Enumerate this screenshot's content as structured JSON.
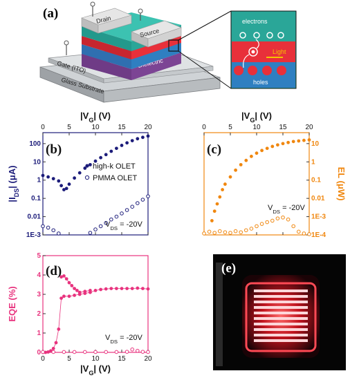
{
  "panel_a": {
    "letter": "(a)",
    "labels": {
      "drain": "Drain",
      "source": "Source",
      "dielectric": "Dielectric",
      "gate": "Gate (ITO)",
      "glass": "Glass Substrate"
    },
    "inset": {
      "electrons": "electrons",
      "light": "Light",
      "holes": "holes"
    },
    "colors": {
      "teal": "#2aa698",
      "red": "#e8303a",
      "blue": "#2f7fc1",
      "purple": "#8a4fa0",
      "gray": "#b9bcbf"
    }
  },
  "panel_e": {
    "letter": "(e)"
  },
  "chart_data": [
    {
      "panel": "(b)",
      "type": "scatter",
      "xlabel": "|V_G| (V)",
      "ylabel": "|I_DS| (μA)",
      "x_ticks": [
        "0",
        "5",
        "10",
        "15",
        "20"
      ],
      "y_ticks": [
        "1E-3",
        "0.01",
        "0.1",
        "1",
        "10",
        "100"
      ],
      "xlim": [
        0,
        20
      ],
      "ylim_log10": [
        -3,
        2.6
      ],
      "y_scale": "log",
      "annotation": "V_DS = -20V",
      "color": "#1c1c7a",
      "series": [
        {
          "name": "high-k OLET",
          "marker": "filled",
          "points": [
            [
              0,
              1.8
            ],
            [
              1,
              1.5
            ],
            [
              2,
              1.2
            ],
            [
              3,
              0.9
            ],
            [
              3.5,
              0.5
            ],
            [
              4,
              0.3
            ],
            [
              4.5,
              0.35
            ],
            [
              5,
              0.6
            ],
            [
              6,
              1.3
            ],
            [
              7,
              2.5
            ],
            [
              8,
              4.5
            ],
            [
              9,
              7
            ],
            [
              10,
              11
            ],
            [
              11,
              17
            ],
            [
              12,
              25
            ],
            [
              13,
              38
            ],
            [
              14,
              55
            ],
            [
              15,
              80
            ],
            [
              16,
              110
            ],
            [
              17,
              145
            ],
            [
              18,
              185
            ],
            [
              19,
              220
            ],
            [
              20,
              260
            ]
          ]
        },
        {
          "name": "PMMA OLET",
          "marker": "open",
          "points": [
            [
              0,
              0.003
            ],
            [
              1,
              0.0025
            ],
            [
              2,
              0.0018
            ],
            [
              3,
              0.0012
            ],
            [
              4,
              0.0008
            ],
            [
              5,
              0.0005
            ],
            [
              6,
              0.0004
            ],
            [
              7,
              0.0005
            ],
            [
              8,
              0.0008
            ],
            [
              9,
              0.0013
            ],
            [
              10,
              0.002
            ],
            [
              11,
              0.003
            ],
            [
              12,
              0.0045
            ],
            [
              13,
              0.007
            ],
            [
              14,
              0.01
            ],
            [
              15,
              0.015
            ],
            [
              16,
              0.023
            ],
            [
              17,
              0.035
            ],
            [
              18,
              0.055
            ],
            [
              19,
              0.085
            ],
            [
              20,
              0.13
            ]
          ]
        }
      ]
    },
    {
      "panel": "(c)",
      "type": "scatter",
      "xlabel": "|V_G| (V)",
      "ylabel": "EL (μW)",
      "x_ticks": [
        "0",
        "5",
        "10",
        "15",
        "20"
      ],
      "y_ticks": [
        "1E-4",
        "1E-3",
        "0.01",
        "0.1",
        "1",
        "10"
      ],
      "xlim": [
        0,
        20
      ],
      "ylim_log10": [
        -4,
        1.6
      ],
      "y_scale": "log",
      "annotation": "V_DS = -20V",
      "color": "#f0870f",
      "series": [
        {
          "marker": "filled",
          "points": [
            [
              1,
              0.00015
            ],
            [
              1.5,
              0.0006
            ],
            [
              2,
              0.002
            ],
            [
              2.5,
              0.005
            ],
            [
              3,
              0.012
            ],
            [
              3.5,
              0.03
            ],
            [
              4,
              0.06
            ],
            [
              5,
              0.15
            ],
            [
              6,
              0.35
            ],
            [
              7,
              0.7
            ],
            [
              8,
              1.2
            ],
            [
              9,
              2
            ],
            [
              10,
              3
            ],
            [
              11,
              4.2
            ],
            [
              12,
              5.5
            ],
            [
              13,
              7
            ],
            [
              14,
              8.5
            ],
            [
              15,
              10
            ],
            [
              16,
              11.5
            ],
            [
              17,
              13
            ],
            [
              18,
              14
            ],
            [
              19,
              15
            ],
            [
              20,
              16
            ]
          ]
        },
        {
          "marker": "open",
          "points": [
            [
              0,
              0.00012
            ],
            [
              1,
              0.00015
            ],
            [
              2,
              0.00013
            ],
            [
              3,
              0.00016
            ],
            [
              4,
              0.00014
            ],
            [
              5,
              0.00013
            ],
            [
              6,
              0.00016
            ],
            [
              7,
              0.00014
            ],
            [
              8,
              0.00018
            ],
            [
              9,
              0.00022
            ],
            [
              10,
              0.0003
            ],
            [
              11,
              0.0004
            ],
            [
              12,
              0.0005
            ],
            [
              13,
              0.0006
            ],
            [
              14,
              0.0008
            ],
            [
              15,
              0.0009
            ],
            [
              16,
              0.0007
            ],
            [
              17,
              0.0003
            ],
            [
              18,
              0.00015
            ],
            [
              19,
              0.00012
            ],
            [
              20,
              0.00011
            ]
          ]
        }
      ]
    },
    {
      "panel": "(d)",
      "type": "scatter",
      "xlabel": "|V_G| (V)",
      "ylabel": "EQE (%)",
      "x_ticks": [
        "0",
        "5",
        "10",
        "15",
        "20"
      ],
      "y_ticks": [
        "0",
        "1",
        "2",
        "3",
        "4",
        "5"
      ],
      "xlim": [
        0,
        20
      ],
      "ylim": [
        0,
        5
      ],
      "annotation": "V_DS = -20V",
      "color": "#e8337e",
      "series": [
        {
          "marker": "filled",
          "points": [
            [
              0,
              0
            ],
            [
              0.5,
              0
            ],
            [
              1,
              0.02
            ],
            [
              1.5,
              0.08
            ],
            [
              2,
              0.2
            ],
            [
              2.5,
              0.5
            ],
            [
              3,
              1.2
            ],
            [
              3.5,
              2.8
            ],
            [
              4,
              2.9
            ],
            [
              5,
              2.9
            ],
            [
              6,
              2.95
            ],
            [
              7,
              3.0
            ],
            [
              8,
              3.05
            ],
            [
              9,
              3.1
            ],
            [
              10,
              3.2
            ],
            [
              11,
              3.25
            ],
            [
              12,
              3.28
            ],
            [
              13,
              3.3
            ],
            [
              14,
              3.3
            ],
            [
              15,
              3.3
            ],
            [
              16,
              3.3
            ],
            [
              17,
              3.3
            ],
            [
              18,
              3.32
            ],
            [
              19,
              3.3
            ],
            [
              20,
              3.28
            ]
          ]
        },
        {
          "marker": "filled",
          "points": [
            [
              3.5,
              3.9
            ],
            [
              4,
              3.95
            ],
            [
              4.5,
              3.8
            ],
            [
              5,
              3.6
            ],
            [
              5.5,
              3.45
            ],
            [
              6,
              3.3
            ],
            [
              6.5,
              3.2
            ],
            [
              7,
              3.1
            ],
            [
              8,
              3.15
            ],
            [
              9,
              3.2
            ]
          ]
        },
        {
          "marker": "open",
          "points": [
            [
              0,
              0.02
            ],
            [
              2,
              0.02
            ],
            [
              4,
              0.02
            ],
            [
              6,
              0.02
            ],
            [
              8,
              0.02
            ],
            [
              10,
              0.02
            ],
            [
              12,
              0.02
            ],
            [
              14,
              0.02
            ],
            [
              16,
              0.03
            ],
            [
              17,
              0.15
            ],
            [
              18,
              0.08
            ],
            [
              19,
              0.03
            ],
            [
              20,
              0.02
            ]
          ]
        }
      ]
    }
  ]
}
